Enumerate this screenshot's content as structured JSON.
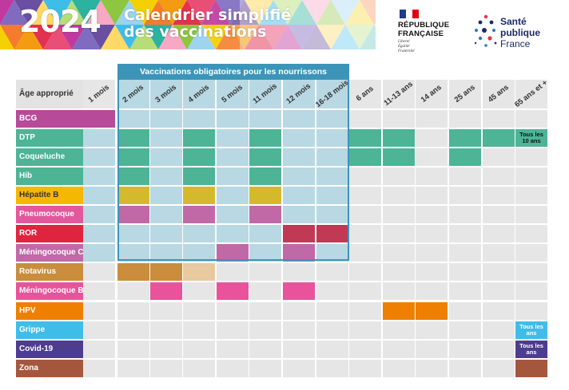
{
  "header": {
    "year": "2024",
    "title_line1": "Calendrier simplifié",
    "title_line2": "des vaccinations",
    "republique": {
      "line1": "RÉPUBLIQUE",
      "line2": "FRANÇAISE",
      "motto": [
        "Liberté",
        "Égalité",
        "Fraternité"
      ]
    },
    "spf": {
      "line1": "Santé",
      "line2": "publique",
      "line3": "France"
    }
  },
  "colors": {
    "oblig_bg": "#b8d8e3",
    "empty": "#e6e6e6",
    "oblig_border": "#3c95b8"
  },
  "mandatory_banner": "Vaccinations obligatoires pour les nourrissons",
  "age_column_label": "Âge approprié",
  "ages": [
    "1 mois",
    "2 mois",
    "3 mois",
    "4 mois",
    "5 mois",
    "11 mois",
    "12 mois",
    "16-18 mois",
    "6 ans",
    "11-13 ans",
    "14 ans",
    "25 ans",
    "45 ans",
    "65 ans et +"
  ],
  "vaccines": [
    {
      "name": "BCG",
      "color": "#b84a9a",
      "text_color": "#ffffff",
      "doses": [
        0
      ],
      "notes": {}
    },
    {
      "name": "DTP",
      "color": "#4db496",
      "text_color": "#ffffff",
      "doses": [
        1,
        3,
        5,
        8,
        9,
        11,
        12
      ],
      "notes": {
        "13": "Tous les 10 ans"
      }
    },
    {
      "name": "Coqueluche",
      "color": "#4db496",
      "text_color": "#ffffff",
      "doses": [
        1,
        3,
        5,
        8,
        9,
        11
      ],
      "notes": {}
    },
    {
      "name": "Hib",
      "color": "#4db496",
      "text_color": "#ffffff",
      "doses": [
        1,
        3,
        5
      ],
      "notes": {}
    },
    {
      "name": "Hépatite B",
      "color": "#f5b800",
      "text_color": "#333333",
      "dose_color": "#d4b92d",
      "doses": [
        1,
        3,
        5
      ],
      "notes": {}
    },
    {
      "name": "Pneumocoque",
      "color": "#e3579d",
      "text_color": "#ffffff",
      "dose_color": "#c069a6",
      "doses": [
        1,
        3,
        5
      ],
      "notes": {}
    },
    {
      "name": "ROR",
      "color": "#e0243f",
      "text_color": "#ffffff",
      "dose_color": "#c03a55",
      "doses": [
        6,
        7
      ],
      "notes": {}
    },
    {
      "name": "Méningocoque C",
      "color": "#c069a6",
      "text_color": "#ffffff",
      "doses": [
        4,
        6
      ],
      "notes": {}
    },
    {
      "name": "Rotavirus",
      "color": "#c98d3c",
      "text_color": "#ffffff",
      "doses": [
        1,
        2
      ],
      "light_doses": [
        3
      ],
      "light_color": "#e8c9a0",
      "notes": {}
    },
    {
      "name": "Méningocoque B",
      "color": "#e8539b",
      "text_color": "#ffffff",
      "doses": [
        2,
        4,
        6
      ],
      "notes": {}
    },
    {
      "name": "HPV",
      "color": "#ee7f00",
      "text_color": "#ffffff",
      "doses": [
        9,
        10
      ],
      "notes": {}
    },
    {
      "name": "Grippe",
      "color": "#3fbde9",
      "text_color": "#ffffff",
      "doses": [],
      "notes": {
        "13": "Tous les ans"
      }
    },
    {
      "name": "Covid-19",
      "color": "#4d3d8f",
      "text_color": "#ffffff",
      "doses": [],
      "notes": {
        "13": "Tous les ans"
      }
    },
    {
      "name": "Zona",
      "color": "#a5573e",
      "text_color": "#ffffff",
      "doses": [
        13
      ],
      "notes": {}
    }
  ]
}
